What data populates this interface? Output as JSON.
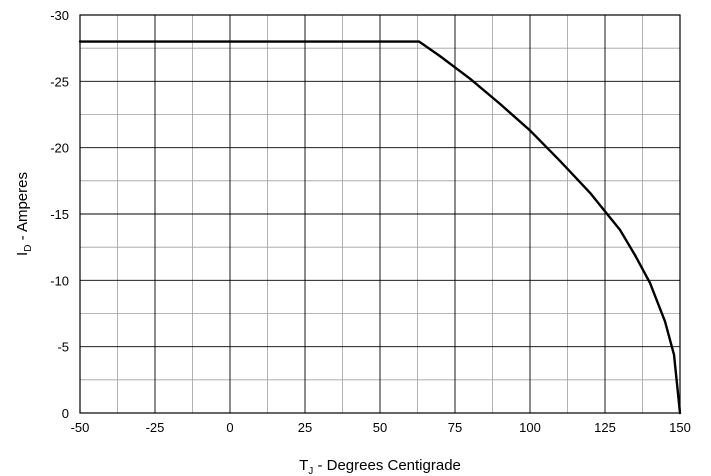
{
  "chart_data": {
    "type": "line",
    "title": "",
    "xlabel": {
      "main": "T",
      "sub": "J",
      "rest": " - Degrees Centigrade"
    },
    "ylabel": {
      "main": "I",
      "sub": "D",
      "rest": " - Amperes"
    },
    "xlim": [
      -50,
      150
    ],
    "ylim": [
      0,
      -30
    ],
    "x_ticks": [
      -50,
      -25,
      0,
      25,
      50,
      75,
      100,
      125,
      150
    ],
    "y_ticks": [
      0,
      -5,
      -10,
      -15,
      -20,
      -25,
      -30
    ],
    "x_tick_labels": [
      "-50",
      "-25",
      "0",
      "25",
      "50",
      "75",
      "100",
      "125",
      "150"
    ],
    "y_tick_labels": [
      "0",
      "-5",
      "-10",
      "-15",
      "-20",
      "-25",
      "-30"
    ],
    "x_minor_step": 12.5,
    "y_minor_step": 2.5,
    "grid": true,
    "series": [
      {
        "color": "#000000",
        "x": [
          -50,
          63,
          70,
          80,
          90,
          100,
          110,
          120,
          125,
          130,
          135,
          140,
          145,
          148,
          150
        ],
        "y": [
          -28,
          -28,
          -26.9,
          -25.2,
          -23.3,
          -21.3,
          -19.0,
          -16.6,
          -15.2,
          -13.8,
          -11.9,
          -9.8,
          -6.9,
          -4.4,
          0
        ]
      }
    ]
  }
}
